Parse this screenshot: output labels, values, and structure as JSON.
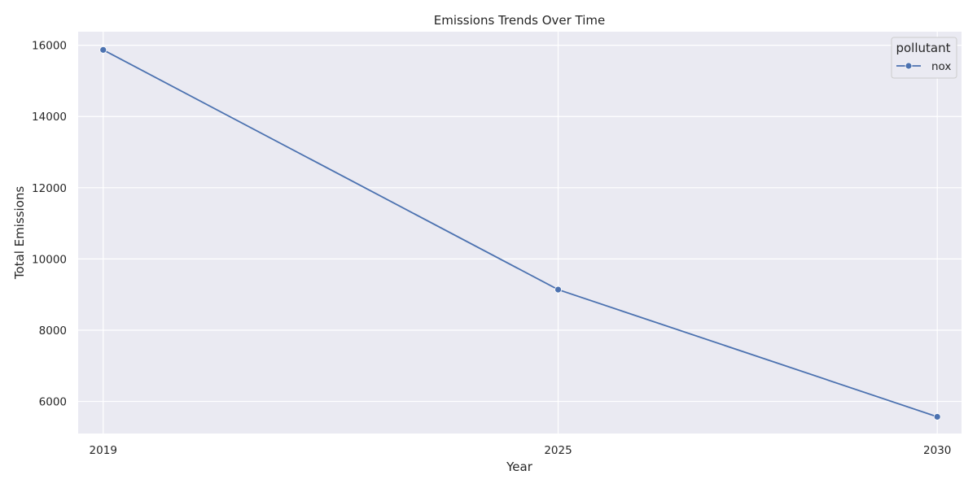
{
  "chart_data": {
    "type": "line",
    "title": "Emissions Trends Over Time",
    "xlabel": "Year",
    "ylabel": "Total Emissions",
    "categories": [
      "2019",
      "2025",
      "2030"
    ],
    "yticks": [
      "6000",
      "8000",
      "10000",
      "12000",
      "14000",
      "16000"
    ],
    "ylim": [
      5100,
      16380
    ],
    "grid": true,
    "legend": {
      "title": "pollutant",
      "position": "top-right"
    },
    "series": [
      {
        "name": "nox",
        "values": [
          15870,
          9140,
          5570
        ]
      }
    ],
    "colors": {
      "plot_bg": "#eaeaf2",
      "grid": "#ffffff",
      "series": "#4c72b0",
      "text": "#262626"
    }
  }
}
